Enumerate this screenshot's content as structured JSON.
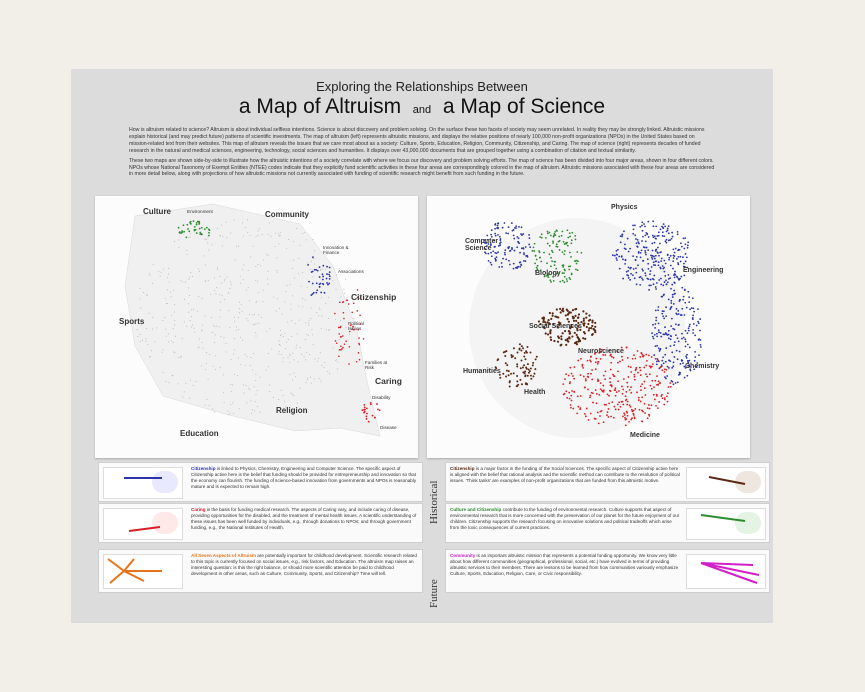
{
  "header": {
    "title_line1": "Exploring the Relationships Between",
    "title_line2a": "a Map of Altruism",
    "title_and": "and",
    "title_line2b": "a Map of Science"
  },
  "intro": {
    "p1": "How is altruism related to science? Altruism is about individual selfless intentions. Science is about discovery and problem solving. On the surface these two facets of society may seem unrelated. In reality they may be strongly linked. Altruistic missions explain historical (and may predict future) patterns of scientific investments. The map of altruism (left) represents altruistic missions, and displays the relative positions of nearly 100,000 non-profit organizations (NPOs) in the United States based on mission-related text from their websites. This map of altruism reveals the issues that we care most about as a society: Culture, Sports, Education, Religion, Community, Citizenship, and Caring. The map of science (right) represents decades of funded research in the natural and medical sciences, engineering, technology, social sciences and humanities. It displays over 43,000,000 documents that are grouped together using a combination of citation and textual similarity.",
    "p2": "These two maps are shown side-by-side to illustrate how the altruistic intentions of a society correlate with where we focus our discovery and problem solving efforts. The map of science has been divided into four major areas, shown in four different colors. NPOs whose National Taxonomy of Exempt Entities (NTEE) codes indicate that they explicitly fund scientific activities in these four areas are correspondingly colored in the map of altruism. Altruistic missions associated with these four areas are considered in more detail below, along with projections of how altruistic missions not currently associated with funding of scientific research might benefit from such funding in the future."
  },
  "altruism_map": {
    "culture": "Culture",
    "environment": "Environment",
    "community": "Community",
    "innovation": "Innovation & Finance",
    "associations": "Associations",
    "citizenship": "Citizenship",
    "political": "Political Issues",
    "sports": "Sports",
    "families": "Families at Risk",
    "caring": "Caring",
    "disability": "Disability",
    "religion": "Religion",
    "education": "Education",
    "disease": "Disease"
  },
  "science_map": {
    "physics": "Physics",
    "computer": "Computer Science",
    "biology": "Biology",
    "engineering": "Engineering",
    "social": "Social Sciences",
    "neuro": "Neuroscience",
    "humanities": "Humanities",
    "chemistry": "Chemistry",
    "health": "Health",
    "medicine": "Medicine"
  },
  "colors": {
    "blue": "#2a35a8",
    "red": "#d91f26",
    "green": "#2e8b2e",
    "brown": "#5a2a14",
    "orange": "#e8731a",
    "magenta": "#d21fc8"
  },
  "side_labels": {
    "historical": "Historical",
    "future": "Future"
  },
  "panels": {
    "citizenship_left": {
      "head": "Citizenship",
      "text": " is linked to Physics, Chemistry, Engineering and Computer Science. The specific aspect of Citizenship active here is the belief that funding should be provided for entrepreneurship and innovation so that the economy can flourish. The funding of science-based innovation from governments and NPOs is reasonably mature and is expected to remain high."
    },
    "caring": {
      "head": "Caring",
      "text": " is the basis for funding medical research. The aspects of Caring vary, and include curing of disease, providing opportunities for the disabled, and the treatment of mental health issues. A scientific understanding of these issues has been well funded by individuals, e.g., through donations to NPOs; and through government funding, e.g., the National Institutes of Health."
    },
    "citizenship_right": {
      "head": "Citizenship",
      "text": " is a major factor in the funding of the Social Sciences. The specific aspect of Citizenship active here is aligned with the belief that rational analysis and the scientific method can contribute to the resolution of political issues. 'Think tanks' are examples of non-profit organizations that are funded from this altruistic motive."
    },
    "culture": {
      "head": "Culture and Citizenship",
      "text": " contribute to the funding of environmental research. Culture supports that aspect of environmental research that is more concerned with the preservation of our planet for the future enjoyment of our children. Citizenship supports the research focusing on innovative solutions and political tradeoffs which arise from the toxic consequences of current practices."
    },
    "all_seven": {
      "head": "All Seven Aspects of Altruism",
      "text": " are potentially important for childhood development. Scientific research related to this topic is currently focused on social issues, e.g., risk factors, and Education. The altruism map raises an interesting question: is this the right balance, or should more scientific attention be paid to childhood development in other areas, such as Culture, Community, Sports, and Citizenship? Time will tell."
    },
    "community": {
      "head": "Community",
      "text": " is an important altruistic mission that represents a potential funding opportunity. We know very little about how different communities (geographical, professional, social, etc.) have evolved in terms of providing altruistic services to their members. There are lessons to be learned from how communities variously emphasize Culture, Sports, Education, Religion, Care, or Civic responsibility."
    }
  }
}
